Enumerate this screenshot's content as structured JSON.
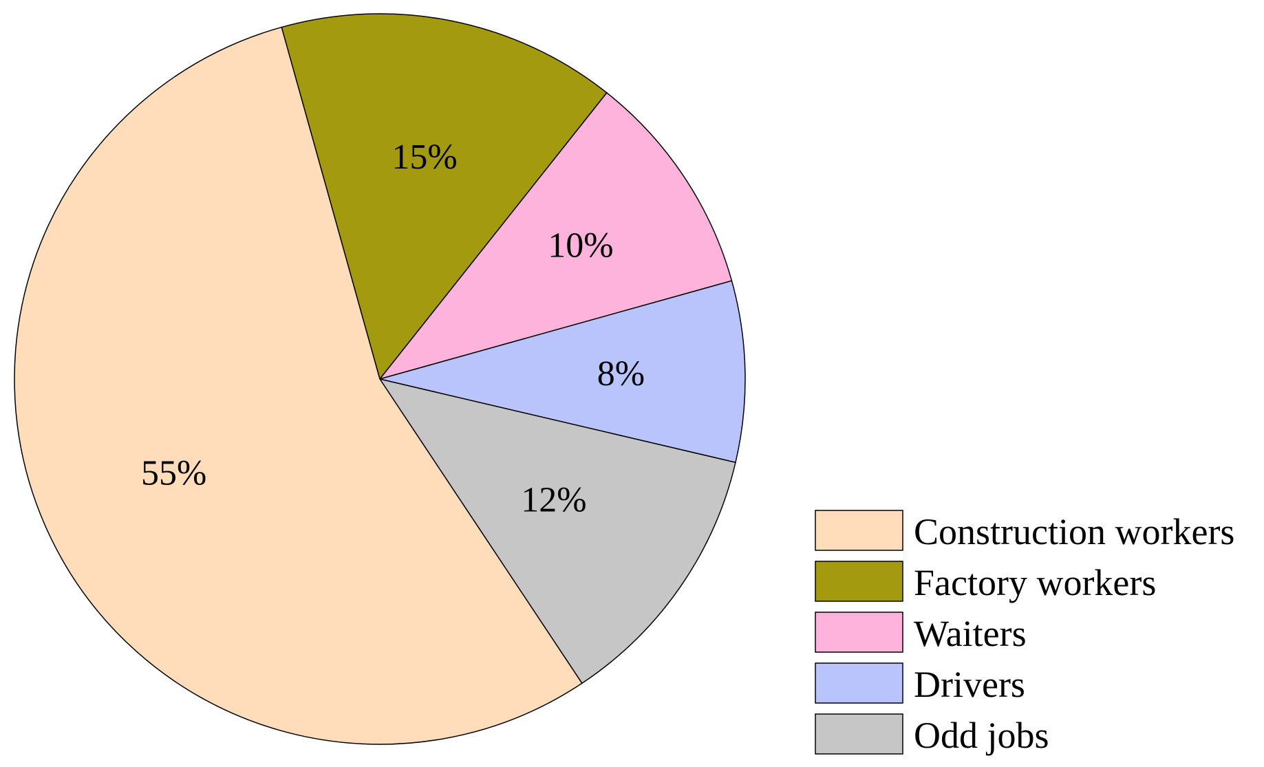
{
  "chart_data": {
    "type": "pie",
    "legend_position": "bottom-right",
    "slices": [
      {
        "label": "Construction workers",
        "value": 55,
        "display": "55%",
        "color": "#FFDDBB"
      },
      {
        "label": "Factory workers",
        "value": 15,
        "display": "15%",
        "color": "#A39A10"
      },
      {
        "label": "Waiters",
        "value": 10,
        "display": "10%",
        "color": "#FDB3DB"
      },
      {
        "label": "Drivers",
        "value": 8,
        "display": "8%",
        "color": "#BAC4FC"
      },
      {
        "label": "Odd jobs",
        "value": 12,
        "display": "12%",
        "color": "#C6C6C6"
      }
    ]
  }
}
